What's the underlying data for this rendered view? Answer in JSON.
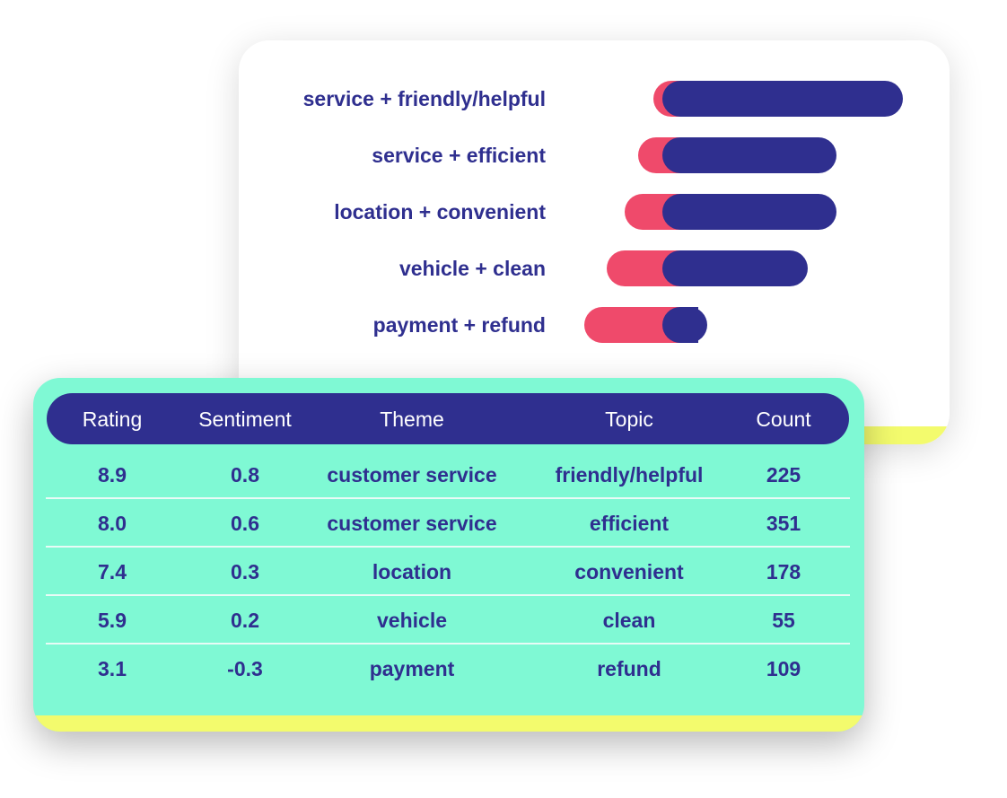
{
  "chart_data": {
    "type": "bar",
    "orientation": "horizontal-diverging",
    "categories": [
      "service + friendly/helpful",
      "service + efficient",
      "location + convenient",
      "vehicle + clean",
      "payment + refund"
    ],
    "series": [
      {
        "values": [
          -30,
          -47,
          -62,
          -82,
          -107
        ]
      },
      {
        "values": [
          248,
          174,
          174,
          142,
          30
        ]
      }
    ],
    "colors": {
      "negative": "#ef4a6b",
      "positive": "#2f2f8f"
    },
    "title": "",
    "xlabel": "",
    "ylabel": ""
  },
  "table": {
    "columns": [
      "Rating",
      "Sentiment",
      "Theme",
      "Topic",
      "Count"
    ],
    "rows": [
      [
        "8.9",
        "0.8",
        "customer service",
        "friendly/helpful",
        "225"
      ],
      [
        "8.0",
        "0.6",
        "customer service",
        "efficient",
        "351"
      ],
      [
        "7.4",
        "0.3",
        "location",
        "convenient",
        "178"
      ],
      [
        "5.9",
        "0.2",
        "vehicle",
        "clean",
        "55"
      ],
      [
        "3.1",
        "-0.3",
        "payment",
        "refund",
        "109"
      ]
    ]
  },
  "colors": {
    "navy": "#2f2f8f",
    "pink": "#ef4a6b",
    "mint": "#7ff9d4",
    "yellow": "#f3fb6d"
  }
}
